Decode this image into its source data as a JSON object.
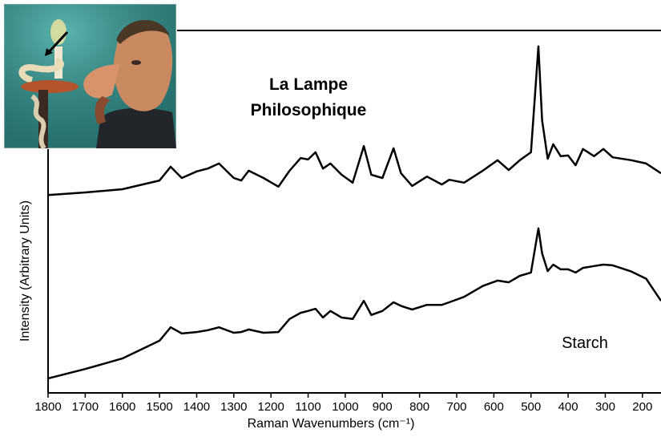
{
  "chart_data": {
    "type": "line",
    "xlabel": "Raman Wavenumbers (cm⁻¹)",
    "ylabel": "Intensity (Arbitrary Units)",
    "x": [
      1800,
      1700,
      1600,
      1500,
      1470,
      1440,
      1400,
      1370,
      1340,
      1300,
      1280,
      1260,
      1220,
      1180,
      1150,
      1120,
      1100,
      1080,
      1060,
      1040,
      1010,
      980,
      950,
      930,
      900,
      870,
      850,
      820,
      780,
      740,
      720,
      680,
      630,
      590,
      560,
      530,
      500,
      480,
      470,
      455,
      440,
      420,
      400,
      380,
      360,
      330,
      305,
      280,
      230,
      190,
      150
    ],
    "series": [
      {
        "name": "La Lampe Philosophique",
        "color": "#000000",
        "values": [
          54.6,
          55.3,
          56.2,
          58.6,
          62.4,
          59.3,
          61.1,
          61.9,
          63.3,
          59.3,
          58.6,
          61.3,
          59.3,
          56.9,
          61.3,
          64.8,
          64.4,
          66.4,
          61.9,
          63.3,
          60.2,
          58.0,
          68.1,
          60.2,
          59.3,
          67.5,
          60.6,
          57.1,
          59.7,
          57.5,
          58.8,
          58.0,
          61.3,
          64.2,
          61.5,
          64.2,
          66.4,
          95.6,
          75.2,
          64.6,
          68.6,
          65.3,
          65.5,
          62.8,
          67.3,
          65.3,
          67.3,
          65.0,
          64.2,
          63.3,
          60.6
        ]
      },
      {
        "name": "Starch",
        "color": "#000000",
        "values": [
          4.0,
          6.6,
          9.5,
          14.4,
          18.1,
          16.4,
          16.8,
          17.3,
          18.1,
          16.6,
          16.8,
          17.5,
          16.6,
          16.8,
          20.4,
          22.1,
          22.6,
          23.2,
          20.8,
          22.6,
          20.8,
          20.4,
          25.4,
          21.5,
          22.6,
          25.0,
          24.0,
          23.0,
          24.3,
          24.3,
          25.0,
          26.5,
          29.5,
          31.0,
          30.5,
          32.3,
          33.2,
          45.4,
          38.5,
          33.6,
          35.4,
          34.1,
          34.1,
          33.2,
          34.5,
          35.0,
          35.4,
          35.2,
          33.5,
          31.5,
          25.4
        ]
      }
    ],
    "xlim": [
      1800,
      150
    ],
    "xticks": [
      1800,
      1700,
      1600,
      1500,
      1400,
      1300,
      1200,
      1100,
      1000,
      900,
      800,
      700,
      600,
      500,
      400,
      300,
      200
    ],
    "ylim": [
      0,
      100
    ]
  }
}
